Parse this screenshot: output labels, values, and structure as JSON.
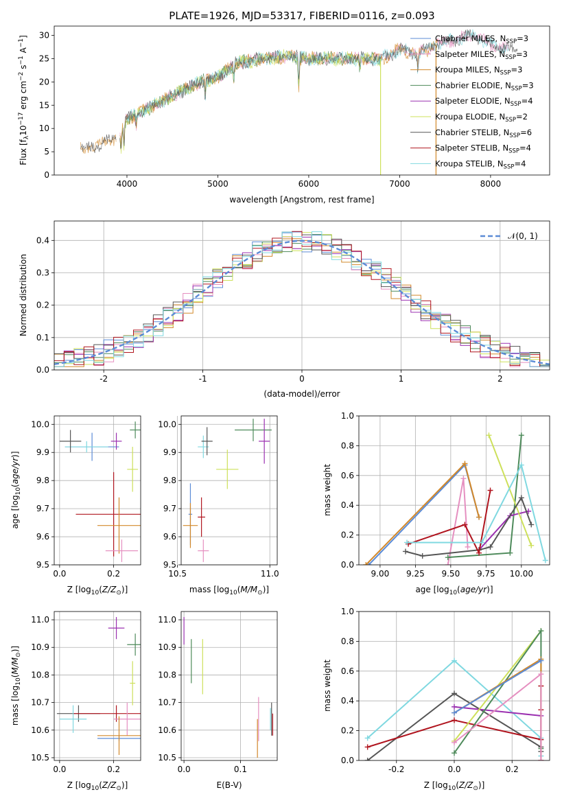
{
  "figure_title": "PLATE=1926, MJD=53317, FIBERID=0116, z=0.093",
  "colors": {
    "Chabrier MILES": "#5b8bd6",
    "Salpeter MILES": "#e58fc0",
    "Kroupa MILES": "#d2882a",
    "Chabrier ELODIE": "#4d8a5a",
    "Salpeter ELODIE": "#9b30b0",
    "Kroupa ELODIE": "#cde05a",
    "Chabrier STELIB": "#555555",
    "Salpeter STELIB": "#b0141e",
    "Kroupa STELIB": "#7fd8e0"
  },
  "chart_data": [
    {
      "type": "line",
      "title": "PLATE=1926, MJD=53317, FIBERID=0116, z=0.093",
      "xlabel": "wavelength [Angstrom, rest frame]",
      "ylabel": "Flux [f_λ 10^-17 erg cm^-2 s^-1 A^-1]",
      "xlim": [
        3200,
        8650
      ],
      "ylim": [
        0,
        32
      ],
      "xticks": [
        4000,
        5000,
        6000,
        7000,
        8000
      ],
      "yticks": [
        0,
        5,
        10,
        15,
        20,
        25,
        30
      ],
      "legend_position": "top-right",
      "legend": [
        {
          "label": "Chabrier MILES, N_SSP=3",
          "text": "Chabrier MILES, N",
          "sub": "SSP",
          "eq": "=3"
        },
        {
          "label": "Salpeter MILES, N_SSP=3",
          "text": "Salpeter MILES, N",
          "sub": "SSP",
          "eq": "=3"
        },
        {
          "label": "Kroupa MILES, N_SSP=3",
          "text": "Kroupa MILES, N",
          "sub": "SSP",
          "eq": "=3"
        },
        {
          "label": "Chabrier ELODIE, N_SSP=3",
          "text": "Chabrier ELODIE, N",
          "sub": "SSP",
          "eq": "=3"
        },
        {
          "label": "Salpeter ELODIE, N_SSP=4",
          "text": "Salpeter ELODIE, N",
          "sub": "SSP",
          "eq": "=4"
        },
        {
          "label": "Kroupa ELODIE, N_SSP=2",
          "text": "Kroupa ELODIE, N",
          "sub": "SSP",
          "eq": "=2"
        },
        {
          "label": "Chabrier STELIB, N_SSP=6",
          "text": "Chabrier STELIB, N",
          "sub": "SSP",
          "eq": "=6"
        },
        {
          "label": "Salpeter STELIB, N_SSP=4",
          "text": "Salpeter STELIB, N",
          "sub": "SSP",
          "eq": "=4"
        },
        {
          "label": "Kroupa STELIB, N_SSP=4",
          "text": "Kroupa STELIB, N",
          "sub": "SSP",
          "eq": "=4"
        }
      ],
      "continuum": [
        [
          3500,
          5.5
        ],
        [
          3700,
          6.5
        ],
        [
          3900,
          8
        ],
        [
          4000,
          12
        ],
        [
          4200,
          14
        ],
        [
          4500,
          17
        ],
        [
          4800,
          20
        ],
        [
          5000,
          21
        ],
        [
          5200,
          24
        ],
        [
          5500,
          25
        ],
        [
          5800,
          25.5
        ],
        [
          6000,
          25
        ],
        [
          6200,
          25
        ],
        [
          6500,
          25
        ],
        [
          6800,
          25
        ],
        [
          7000,
          27
        ],
        [
          7200,
          26
        ],
        [
          7400,
          28
        ],
        [
          7600,
          29
        ],
        [
          7800,
          30
        ],
        [
          8000,
          28
        ],
        [
          8200,
          27
        ],
        [
          8300,
          26.5
        ]
      ],
      "drops": [
        {
          "series": "Kroupa ELODIE",
          "x": 6790
        },
        {
          "series": "Kroupa MILES",
          "x": 7400
        }
      ],
      "overlay_series": [
        {
          "name": "Salpeter MILES",
          "x_from": 3900,
          "x_to": 8200
        },
        {
          "name": "Kroupa MILES",
          "x_from": 3490,
          "x_to": 7420
        },
        {
          "name": "Chabrier ELODIE",
          "x_from": 3900,
          "x_to": 6800
        },
        {
          "name": "Kroupa ELODIE",
          "x_from": 3900,
          "x_to": 6790
        },
        {
          "name": "Kroupa STELIB",
          "x_from": 4000,
          "x_to": 8200
        },
        {
          "name": "Chabrier STELIB",
          "x_from": 3490,
          "x_to": 8300
        }
      ]
    },
    {
      "type": "bar",
      "subtype": "step-histogram",
      "xlabel": "(data-model)/error",
      "ylabel": "Normed distribution",
      "xlim": [
        -2.5,
        2.5
      ],
      "ylim": [
        0,
        0.46
      ],
      "xticks": [
        -2,
        -1,
        0,
        1,
        2
      ],
      "yticks": [
        0.0,
        0.1,
        0.2,
        0.3,
        0.4
      ],
      "reference_curve": {
        "label": "𝒩(0, 1)",
        "color": "#5b8bd6",
        "style": "dashed"
      },
      "legend_position": "top-right",
      "bin_width": 0.1,
      "base_values": [
        0.018,
        0.022,
        0.027,
        0.033,
        0.04,
        0.047,
        0.056,
        0.065,
        0.075,
        0.087,
        0.1,
        0.113,
        0.128,
        0.144,
        0.161,
        0.178,
        0.197,
        0.215,
        0.234,
        0.254,
        0.274,
        0.292,
        0.311,
        0.328,
        0.343,
        0.356,
        0.368,
        0.378,
        0.387,
        0.394,
        0.398,
        0.4,
        0.399,
        0.396,
        0.391,
        0.382,
        0.372,
        0.361,
        0.348,
        0.333,
        0.317,
        0.3,
        0.282,
        0.264,
        0.245,
        0.227,
        0.208,
        0.19,
        0.172,
        0.155,
        0.139,
        0.124,
        0.111,
        0.098,
        0.086,
        0.075,
        0.065,
        0.057,
        0.05,
        0.044,
        0.038,
        0.033,
        0.029,
        0.025,
        0.022,
        0.02,
        0.018,
        0.016,
        0.015,
        0.014,
        0.013,
        0.012,
        0.011,
        0.011,
        0.01,
        0.01,
        0.01,
        0.01,
        0.01,
        0.01,
        0.01,
        0.01,
        0.01,
        0.01,
        0.01,
        0.01,
        0.01,
        0.01,
        0.01,
        0.01,
        0.01,
        0.01,
        0.01,
        0.01,
        0.01,
        0.01,
        0.01,
        0.01,
        0.01,
        0.01
      ]
    },
    {
      "type": "scatter",
      "subtype": "error-bars",
      "xlabel": "Z [log10(Z/Z☉)]",
      "ylabel": "age [log10(age/yr)]",
      "xlim": [
        -0.02,
        0.3
      ],
      "ylim": [
        9.5,
        10.03
      ],
      "xticks": [
        0.0,
        0.2
      ],
      "yticks": [
        9.5,
        9.6,
        9.7,
        9.8,
        9.9,
        10.0
      ],
      "points": [
        {
          "series": "Chabrier MILES",
          "x": 0.12,
          "xerr": 0.1,
          "y": 9.92,
          "yerr": 0.05
        },
        {
          "series": "Kroupa STELIB",
          "x": 0.1,
          "xerr": 0.08,
          "y": 9.92,
          "yerr": 0.02
        },
        {
          "series": "Chabrier STELIB",
          "x": 0.04,
          "xerr": 0.04,
          "y": 9.94,
          "yerr": 0.04
        },
        {
          "series": "Salpeter ELODIE",
          "x": 0.21,
          "xerr": 0.02,
          "y": 9.94,
          "yerr": 0.03
        },
        {
          "series": "Chabrier ELODIE",
          "x": 0.28,
          "xerr": 0.02,
          "y": 9.98,
          "yerr": 0.03
        },
        {
          "series": "Kroupa ELODIE",
          "x": 0.27,
          "xerr": 0.02,
          "y": 9.84,
          "yerr": 0.08
        },
        {
          "series": "Salpeter STELIB",
          "x": 0.2,
          "xerr": 0.14,
          "y": 9.68,
          "yerr": 0.15
        },
        {
          "series": "Kroupa MILES",
          "x": 0.22,
          "xerr": 0.08,
          "y": 9.64,
          "yerr": 0.1
        },
        {
          "series": "Salpeter MILES",
          "x": 0.23,
          "xerr": 0.06,
          "y": 9.55,
          "yerr": 0.04
        }
      ]
    },
    {
      "type": "scatter",
      "subtype": "error-bars",
      "xlabel": "mass [log10(M/M☉)]",
      "ylabel": "",
      "xlim": [
        10.52,
        11.04
      ],
      "ylim": [
        9.5,
        10.03
      ],
      "xticks": [
        10.5,
        11.0
      ],
      "yticks": [
        9.5,
        9.6,
        9.7,
        9.8,
        9.9,
        10.0
      ],
      "points": [
        {
          "series": "Kroupa STELIB",
          "x": 10.64,
          "xerr": 0.03,
          "y": 9.92,
          "yerr": 0.04
        },
        {
          "series": "Chabrier STELIB",
          "x": 10.66,
          "xerr": 0.03,
          "y": 9.94,
          "yerr": 0.05
        },
        {
          "series": "Chabrier ELODIE",
          "x": 10.91,
          "xerr": 0.1,
          "y": 9.98,
          "yerr": 0.04
        },
        {
          "series": "Salpeter ELODIE",
          "x": 10.97,
          "xerr": 0.03,
          "y": 9.94,
          "yerr": 0.08
        },
        {
          "series": "Kroupa ELODIE",
          "x": 10.77,
          "xerr": 0.06,
          "y": 9.84,
          "yerr": 0.07
        },
        {
          "series": "Chabrier MILES",
          "x": 10.57,
          "xerr": 0.01,
          "y": 9.68,
          "yerr": 0.11
        },
        {
          "series": "Kroupa MILES",
          "x": 10.57,
          "xerr": 0.04,
          "y": 9.64,
          "yerr": 0.08
        },
        {
          "series": "Salpeter STELIB",
          "x": 10.63,
          "xerr": 0.02,
          "y": 9.67,
          "yerr": 0.07
        },
        {
          "series": "Salpeter MILES",
          "x": 10.64,
          "xerr": 0.03,
          "y": 9.55,
          "yerr": 0.04
        }
      ]
    },
    {
      "type": "line",
      "xlabel": "age [log10(age/yr)]",
      "ylabel": "mass weight",
      "xlim": [
        8.85,
        10.2
      ],
      "ylim": [
        0,
        1
      ],
      "xticks": [
        9.0,
        9.25,
        9.5,
        9.75,
        10.0
      ],
      "yticks": [
        0.0,
        0.2,
        0.4,
        0.6,
        0.8,
        1.0
      ],
      "series": [
        {
          "name": "Chabrier MILES",
          "x": [
            8.92,
            9.6,
            9.7
          ],
          "y": [
            0.0,
            0.67,
            0.32
          ]
        },
        {
          "name": "Salpeter MILES",
          "x": [
            9.48,
            9.59,
            9.62
          ],
          "y": [
            0.0,
            0.58,
            0.12
          ]
        },
        {
          "name": "Kroupa MILES",
          "x": [
            8.9,
            9.6,
            9.7
          ],
          "y": [
            0.0,
            0.68,
            0.32
          ]
        },
        {
          "name": "Chabrier ELODIE",
          "x": [
            9.48,
            9.92,
            10.0
          ],
          "y": [
            0.05,
            0.08,
            0.87
          ]
        },
        {
          "name": "Salpeter ELODIE",
          "x": [
            9.7,
            9.92,
            10.05
          ],
          "y": [
            0.1,
            0.33,
            0.36
          ]
        },
        {
          "name": "Kroupa ELODIE",
          "x": [
            9.77,
            10.07
          ],
          "y": [
            0.87,
            0.13
          ]
        },
        {
          "name": "Chabrier STELIB",
          "x": [
            9.18,
            9.3,
            9.7,
            9.78,
            10.0,
            10.07
          ],
          "y": [
            0.09,
            0.06,
            0.1,
            0.12,
            0.45,
            0.27
          ]
        },
        {
          "name": "Salpeter STELIB",
          "x": [
            9.2,
            9.6,
            9.7,
            9.78
          ],
          "y": [
            0.14,
            0.27,
            0.08,
            0.5
          ]
        },
        {
          "name": "Kroupa STELIB",
          "x": [
            9.19,
            9.72,
            10.0,
            10.17
          ],
          "y": [
            0.15,
            0.15,
            0.67,
            0.03
          ]
        }
      ]
    },
    {
      "type": "scatter",
      "subtype": "error-bars",
      "xlabel": "Z [log10(Z/Z☉)]",
      "ylabel": "mass [log10(M/M☉)]",
      "xlim": [
        -0.02,
        0.3
      ],
      "ylim": [
        10.49,
        11.03
      ],
      "xticks": [
        0.0,
        0.2
      ],
      "yticks": [
        10.5,
        10.6,
        10.7,
        10.8,
        10.9,
        11.0
      ],
      "points": [
        {
          "series": "Salpeter ELODIE",
          "x": 0.21,
          "xerr": 0.03,
          "y": 10.97,
          "yerr": 0.04
        },
        {
          "series": "Chabrier ELODIE",
          "x": 0.28,
          "xerr": 0.03,
          "y": 10.91,
          "yerr": 0.04
        },
        {
          "series": "Kroupa ELODIE",
          "x": 0.27,
          "xerr": 0.01,
          "y": 10.77,
          "yerr": 0.08
        },
        {
          "series": "Chabrier STELIB",
          "x": 0.07,
          "xerr": 0.08,
          "y": 10.66,
          "yerr": 0.03
        },
        {
          "series": "Salpeter STELIB",
          "x": 0.21,
          "xerr": 0.16,
          "y": 10.66,
          "yerr": 0.03
        },
        {
          "series": "Kroupa STELIB",
          "x": 0.05,
          "xerr": 0.05,
          "y": 10.64,
          "yerr": 0.05
        },
        {
          "series": "Salpeter MILES",
          "x": 0.25,
          "xerr": 0.05,
          "y": 10.64,
          "yerr": 0.06
        },
        {
          "series": "Chabrier MILES",
          "x": 0.22,
          "xerr": 0.08,
          "y": 10.57,
          "yerr": 0.01
        },
        {
          "series": "Kroupa MILES",
          "x": 0.22,
          "xerr": 0.08,
          "y": 10.58,
          "yerr": 0.07
        }
      ]
    },
    {
      "type": "scatter",
      "subtype": "error-bars",
      "xlabel": "E(B-V)",
      "ylabel": "",
      "xlim": [
        -0.005,
        0.165
      ],
      "ylim": [
        10.49,
        11.03
      ],
      "xticks": [
        0.0,
        0.1
      ],
      "yticks": [
        10.5,
        10.6,
        10.7,
        10.8,
        10.9,
        11.0
      ],
      "points": [
        {
          "series": "Salpeter ELODIE",
          "x": 0.0,
          "xerr": 0,
          "y": 10.96,
          "yerr": 0.05
        },
        {
          "series": "Chabrier ELODIE",
          "x": 0.013,
          "xerr": 0,
          "y": 10.85,
          "yerr": 0.08
        },
        {
          "series": "Kroupa ELODIE",
          "x": 0.033,
          "xerr": 0,
          "y": 10.83,
          "yerr": 0.1
        },
        {
          "series": "Salpeter MILES",
          "x": 0.132,
          "xerr": 0,
          "y": 10.64,
          "yerr": 0.08
        },
        {
          "series": "Kroupa MILES",
          "x": 0.13,
          "xerr": 0,
          "y": 10.57,
          "yerr": 0.07
        },
        {
          "series": "Chabrier STELIB",
          "x": 0.155,
          "xerr": 0,
          "y": 10.64,
          "yerr": 0.06
        },
        {
          "series": "Salpeter STELIB",
          "x": 0.157,
          "xerr": 0,
          "y": 10.62,
          "yerr": 0.04
        },
        {
          "series": "Kroupa STELIB",
          "x": 0.153,
          "xerr": 0,
          "y": 10.64,
          "yerr": 0.04
        }
      ]
    },
    {
      "type": "line",
      "xlabel": "Z [log10(Z/Z☉)]",
      "ylabel": "mass weight",
      "xlim": [
        -0.33,
        0.33
      ],
      "ylim": [
        0,
        1
      ],
      "xticks": [
        -0.2,
        0.0,
        0.2
      ],
      "yticks": [
        0.0,
        0.2,
        0.4,
        0.6,
        0.8,
        1.0
      ],
      "series": [
        {
          "name": "Kroupa STELIB",
          "x": [
            -0.3,
            0.0,
            0.3,
            0.3
          ],
          "y": [
            0.15,
            0.67,
            0.15,
            0.03
          ]
        },
        {
          "name": "Chabrier STELIB",
          "x": [
            -0.3,
            0.0,
            0.3,
            0.3
          ],
          "y": [
            0.0,
            0.45,
            0.09,
            0.06
          ]
        },
        {
          "name": "Salpeter ELODIE",
          "x": [
            0.0,
            0.3,
            0.3
          ],
          "y": [
            0.36,
            0.3,
            0.0
          ]
        },
        {
          "name": "Salpeter STELIB",
          "x": [
            -0.3,
            0.0,
            0.3,
            0.3,
            0.3
          ],
          "y": [
            0.09,
            0.27,
            0.14,
            0.34,
            0.5
          ]
        },
        {
          "name": "Kroupa ELODIE",
          "x": [
            0.0,
            0.3
          ],
          "y": [
            0.13,
            0.87
          ]
        },
        {
          "name": "Chabrier ELODIE",
          "x": [
            0.0,
            0.3,
            0.3
          ],
          "y": [
            0.05,
            0.87,
            0.08
          ]
        },
        {
          "name": "Kroupa MILES",
          "x": [
            0.0,
            0.3,
            0.3
          ],
          "y": [
            0.32,
            0.68,
            0.0
          ]
        },
        {
          "name": "Salpeter MILES",
          "x": [
            0.0,
            0.3,
            0.3
          ],
          "y": [
            0.12,
            0.58,
            0.0
          ]
        },
        {
          "name": "Chabrier MILES",
          "x": [
            0.0,
            0.3
          ],
          "y": [
            0.32,
            0.67
          ]
        }
      ]
    }
  ]
}
